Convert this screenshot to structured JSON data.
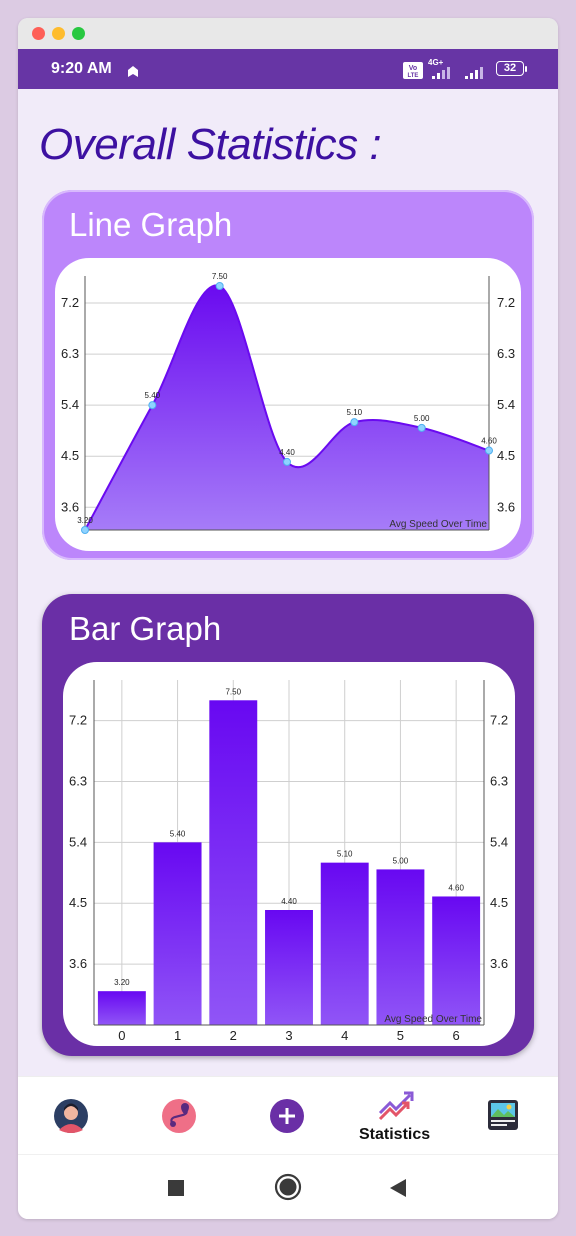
{
  "status_bar": {
    "time": "9:20 AM",
    "battery": "32",
    "network": "4G+",
    "volte": "Vo LTE"
  },
  "page": {
    "title": "Overall Statistics :"
  },
  "line_card": {
    "title": "Line Graph"
  },
  "bar_card": {
    "title": "Bar Graph"
  },
  "colors": {
    "accent": "#6735a5",
    "title": "#3d11a1",
    "line_card_bg": "#bc86fb",
    "bar_card_bg": "#6a2fa6",
    "series_fill_top": "#6a0af0",
    "series_fill_bottom": "#a67cf8"
  },
  "chart_data": [
    {
      "type": "area",
      "title": "Line Graph",
      "x": [
        0,
        1,
        2,
        3,
        4,
        5,
        6
      ],
      "values": [
        3.2,
        5.4,
        7.5,
        4.4,
        5.1,
        5.0,
        4.6
      ],
      "value_labels": [
        "3.20",
        "5.40",
        "7.50",
        "4.40",
        "5.10",
        "5.00",
        "4.60"
      ],
      "y_ticks": [
        "3.6",
        "4.5",
        "5.4",
        "6.3",
        "7.2"
      ],
      "y_tick_values": [
        3.6,
        4.5,
        5.4,
        6.3,
        7.2
      ],
      "ylim": [
        3.2,
        7.5
      ],
      "legend": "Avg Speed Over Time",
      "grid": true,
      "smooth": true
    },
    {
      "type": "bar",
      "title": "Bar Graph",
      "categories": [
        "0",
        "1",
        "2",
        "3",
        "4",
        "5",
        "6"
      ],
      "values": [
        3.2,
        5.4,
        7.5,
        4.4,
        5.1,
        5.0,
        4.6
      ],
      "value_labels": [
        "3.20",
        "5.40",
        "7.50",
        "4.40",
        "5.10",
        "5.00",
        "4.60"
      ],
      "y_ticks": [
        "3.6",
        "4.5",
        "5.4",
        "6.3",
        "7.2"
      ],
      "y_tick_values": [
        3.6,
        4.5,
        5.4,
        6.3,
        7.2
      ],
      "ylim": [
        2.7,
        7.8
      ],
      "legend": "Avg Speed Over Time",
      "grid": true
    }
  ],
  "bottom_nav": {
    "items": [
      {
        "icon": "profile-avatar-icon",
        "label": ""
      },
      {
        "icon": "route-map-icon",
        "label": ""
      },
      {
        "icon": "add-icon",
        "label": ""
      },
      {
        "icon": "statistics-icon",
        "label": "Statistics"
      },
      {
        "icon": "gallery-card-icon",
        "label": ""
      }
    ]
  },
  "system_nav": {
    "icons": [
      "recents-square-icon",
      "home-circle-icon",
      "back-triangle-icon"
    ]
  }
}
